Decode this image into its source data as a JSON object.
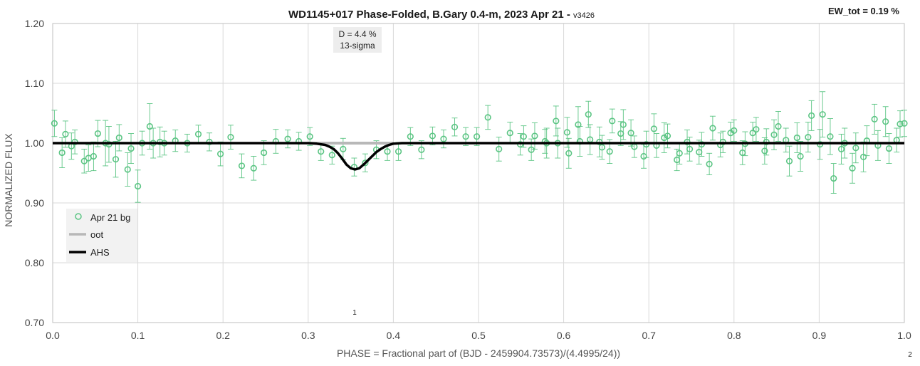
{
  "chart_data": {
    "type": "scatter",
    "title": "WD1145+017 Phase-Folded, B.Gary 0.4-m, 2023 Apr 21 - ",
    "title_version": "v3426",
    "ew_label": "EW_tot = 0.19 %",
    "xlabel": "PHASE = Fractional part of (BJD - 2459904.73573)/(4.4995/24))",
    "ylabel": "NORMALIZED FLUX",
    "xlim": [
      0.0,
      1.0
    ],
    "ylim": [
      0.7,
      1.2
    ],
    "x_ticks": [
      "0.0",
      "0.1",
      "0.2",
      "0.3",
      "0.4",
      "0.5",
      "0.6",
      "0.7",
      "0.8",
      "0.9",
      "1.0"
    ],
    "y_ticks": [
      "0.70",
      "0.80",
      "0.90",
      "1.00",
      "1.10",
      "1.20"
    ],
    "grid": true,
    "legend_position": "bottom-left",
    "annotations": {
      "depth_line1": "D = 4.4 %",
      "depth_line2": "13-sigma",
      "dip_marker": "1",
      "page_marker": "2"
    },
    "series": [
      {
        "name": "Apr 21 bg",
        "style": "open-circle-with-errorbars",
        "color": "#5cc584",
        "points": [
          [
            0.002,
            1.033,
            0.022
          ],
          [
            0.011,
            0.984,
            0.025
          ],
          [
            0.015,
            1.015,
            0.022
          ],
          [
            0.022,
            0.995,
            0.022
          ],
          [
            0.026,
            1.002,
            0.02
          ],
          [
            0.037,
            0.97,
            0.02
          ],
          [
            0.042,
            0.975,
            0.022
          ],
          [
            0.048,
            0.978,
            0.024
          ],
          [
            0.053,
            1.016,
            0.022
          ],
          [
            0.062,
            1.0,
            0.038
          ],
          [
            0.066,
            0.998,
            0.03
          ],
          [
            0.074,
            0.973,
            0.03
          ],
          [
            0.078,
            1.009,
            0.022
          ],
          [
            0.088,
            0.956,
            0.028
          ],
          [
            0.092,
            0.991,
            0.025
          ],
          [
            0.1,
            0.928,
            0.027
          ],
          [
            0.105,
            1.0,
            0.02
          ],
          [
            0.114,
            1.028,
            0.038
          ],
          [
            0.118,
            1.0,
            0.025
          ],
          [
            0.126,
            1.002,
            0.025
          ],
          [
            0.131,
            1.0,
            0.02
          ],
          [
            0.144,
            1.004,
            0.018
          ],
          [
            0.158,
            1.0,
            0.015
          ],
          [
            0.171,
            1.015,
            0.015
          ],
          [
            0.184,
            1.002,
            0.015
          ],
          [
            0.197,
            0.982,
            0.02
          ],
          [
            0.209,
            1.01,
            0.02
          ],
          [
            0.222,
            0.962,
            0.02
          ],
          [
            0.236,
            0.958,
            0.02
          ],
          [
            0.248,
            0.984,
            0.02
          ],
          [
            0.262,
            1.003,
            0.02
          ],
          [
            0.276,
            1.007,
            0.015
          ],
          [
            0.289,
            1.003,
            0.015
          ],
          [
            0.302,
            1.011,
            0.015
          ],
          [
            0.315,
            0.986,
            0.015
          ],
          [
            0.328,
            0.98,
            0.015
          ],
          [
            0.341,
            0.99,
            0.018
          ],
          [
            0.354,
            0.96,
            0.015
          ],
          [
            0.367,
            0.967,
            0.015
          ],
          [
            0.38,
            0.989,
            0.015
          ],
          [
            0.393,
            0.986,
            0.015
          ],
          [
            0.406,
            0.986,
            0.015
          ],
          [
            0.42,
            1.011,
            0.015
          ],
          [
            0.433,
            0.989,
            0.015
          ],
          [
            0.446,
            1.012,
            0.015
          ],
          [
            0.459,
            1.007,
            0.015
          ],
          [
            0.472,
            1.027,
            0.015
          ],
          [
            0.485,
            1.011,
            0.015
          ],
          [
            0.498,
            1.011,
            0.015
          ],
          [
            0.511,
            1.043,
            0.02
          ],
          [
            0.524,
            0.99,
            0.02
          ],
          [
            0.537,
            1.017,
            0.018
          ],
          [
            0.549,
            0.998,
            0.018
          ],
          [
            0.553,
            1.011,
            0.018
          ],
          [
            0.562,
            0.989,
            0.018
          ],
          [
            0.566,
            1.012,
            0.022
          ],
          [
            0.578,
            1.003,
            0.02
          ],
          [
            0.58,
            1.0,
            0.025
          ],
          [
            0.591,
            1.037,
            0.025
          ],
          [
            0.593,
            1.0,
            0.025
          ],
          [
            0.604,
            1.018,
            0.025
          ],
          [
            0.606,
            0.983,
            0.025
          ],
          [
            0.617,
            1.031,
            0.03
          ],
          [
            0.619,
            1.003,
            0.025
          ],
          [
            0.629,
            1.048,
            0.022
          ],
          [
            0.631,
            1.006,
            0.025
          ],
          [
            0.642,
            1.002,
            0.025
          ],
          [
            0.645,
            0.993,
            0.02
          ],
          [
            0.654,
            0.986,
            0.02
          ],
          [
            0.657,
            1.037,
            0.02
          ],
          [
            0.667,
            1.016,
            0.02
          ],
          [
            0.67,
            1.031,
            0.025
          ],
          [
            0.679,
            1.017,
            0.022
          ],
          [
            0.683,
            0.994,
            0.018
          ],
          [
            0.694,
            0.978,
            0.02
          ],
          [
            0.697,
            0.998,
            0.022
          ],
          [
            0.706,
            1.024,
            0.025
          ],
          [
            0.709,
            0.996,
            0.02
          ],
          [
            0.718,
            1.009,
            0.025
          ],
          [
            0.722,
            1.012,
            0.02
          ],
          [
            0.733,
            0.972,
            0.018
          ],
          [
            0.736,
            0.983,
            0.018
          ],
          [
            0.745,
            1.002,
            0.02
          ],
          [
            0.748,
            0.99,
            0.02
          ],
          [
            0.759,
            0.985,
            0.02
          ],
          [
            0.762,
            0.998,
            0.02
          ],
          [
            0.771,
            0.965,
            0.018
          ],
          [
            0.775,
            1.025,
            0.02
          ],
          [
            0.784,
            0.997,
            0.02
          ],
          [
            0.787,
            1.002,
            0.018
          ],
          [
            0.796,
            1.017,
            0.018
          ],
          [
            0.8,
            1.021,
            0.018
          ],
          [
            0.81,
            0.984,
            0.02
          ],
          [
            0.813,
            0.999,
            0.02
          ],
          [
            0.822,
            1.017,
            0.018
          ],
          [
            0.826,
            1.023,
            0.02
          ],
          [
            0.836,
            0.987,
            0.022
          ],
          [
            0.838,
            1.002,
            0.022
          ],
          [
            0.847,
            1.014,
            0.025
          ],
          [
            0.852,
            1.028,
            0.025
          ],
          [
            0.861,
            1.005,
            0.02
          ],
          [
            0.865,
            0.97,
            0.025
          ],
          [
            0.874,
            1.009,
            0.025
          ],
          [
            0.878,
            0.978,
            0.025
          ],
          [
            0.887,
            1.01,
            0.025
          ],
          [
            0.891,
            1.046,
            0.025
          ],
          [
            0.901,
            0.998,
            0.025
          ],
          [
            0.904,
            1.048,
            0.038
          ],
          [
            0.913,
            1.011,
            0.03
          ],
          [
            0.917,
            0.941,
            0.025
          ],
          [
            0.926,
            0.99,
            0.025
          ],
          [
            0.93,
            1.0,
            0.025
          ],
          [
            0.939,
            0.958,
            0.025
          ],
          [
            0.943,
            0.992,
            0.025
          ],
          [
            0.952,
            0.977,
            0.025
          ],
          [
            0.956,
            1.004,
            0.025
          ],
          [
            0.965,
            1.04,
            0.025
          ],
          [
            0.969,
            0.996,
            0.025
          ],
          [
            0.978,
            1.036,
            0.025
          ],
          [
            0.982,
            0.991,
            0.025
          ],
          [
            0.991,
            1.005,
            0.02
          ],
          [
            0.995,
            1.032,
            0.022
          ],
          [
            1.0,
            1.033,
            0.022
          ]
        ]
      },
      {
        "name": "oot",
        "style": "line",
        "color": "#b8b8b8",
        "x": [
          0.3,
          0.4
        ],
        "y": [
          1.0,
          1.0
        ]
      },
      {
        "name": "AHS",
        "style": "line",
        "color": "#000000",
        "x": [
          0.0,
          0.3,
          0.31,
          0.32,
          0.325,
          0.33,
          0.335,
          0.34,
          0.345,
          0.35,
          0.355,
          0.36,
          0.365,
          0.37,
          0.375,
          0.38,
          0.385,
          0.39,
          0.395,
          0.4,
          0.41,
          0.42,
          1.0
        ],
        "y": [
          1.0,
          1.0,
          0.999,
          0.997,
          0.994,
          0.99,
          0.983,
          0.974,
          0.964,
          0.958,
          0.956,
          0.958,
          0.964,
          0.971,
          0.978,
          0.985,
          0.99,
          0.994,
          0.997,
          0.999,
          1.0,
          1.0,
          1.0
        ]
      }
    ]
  }
}
